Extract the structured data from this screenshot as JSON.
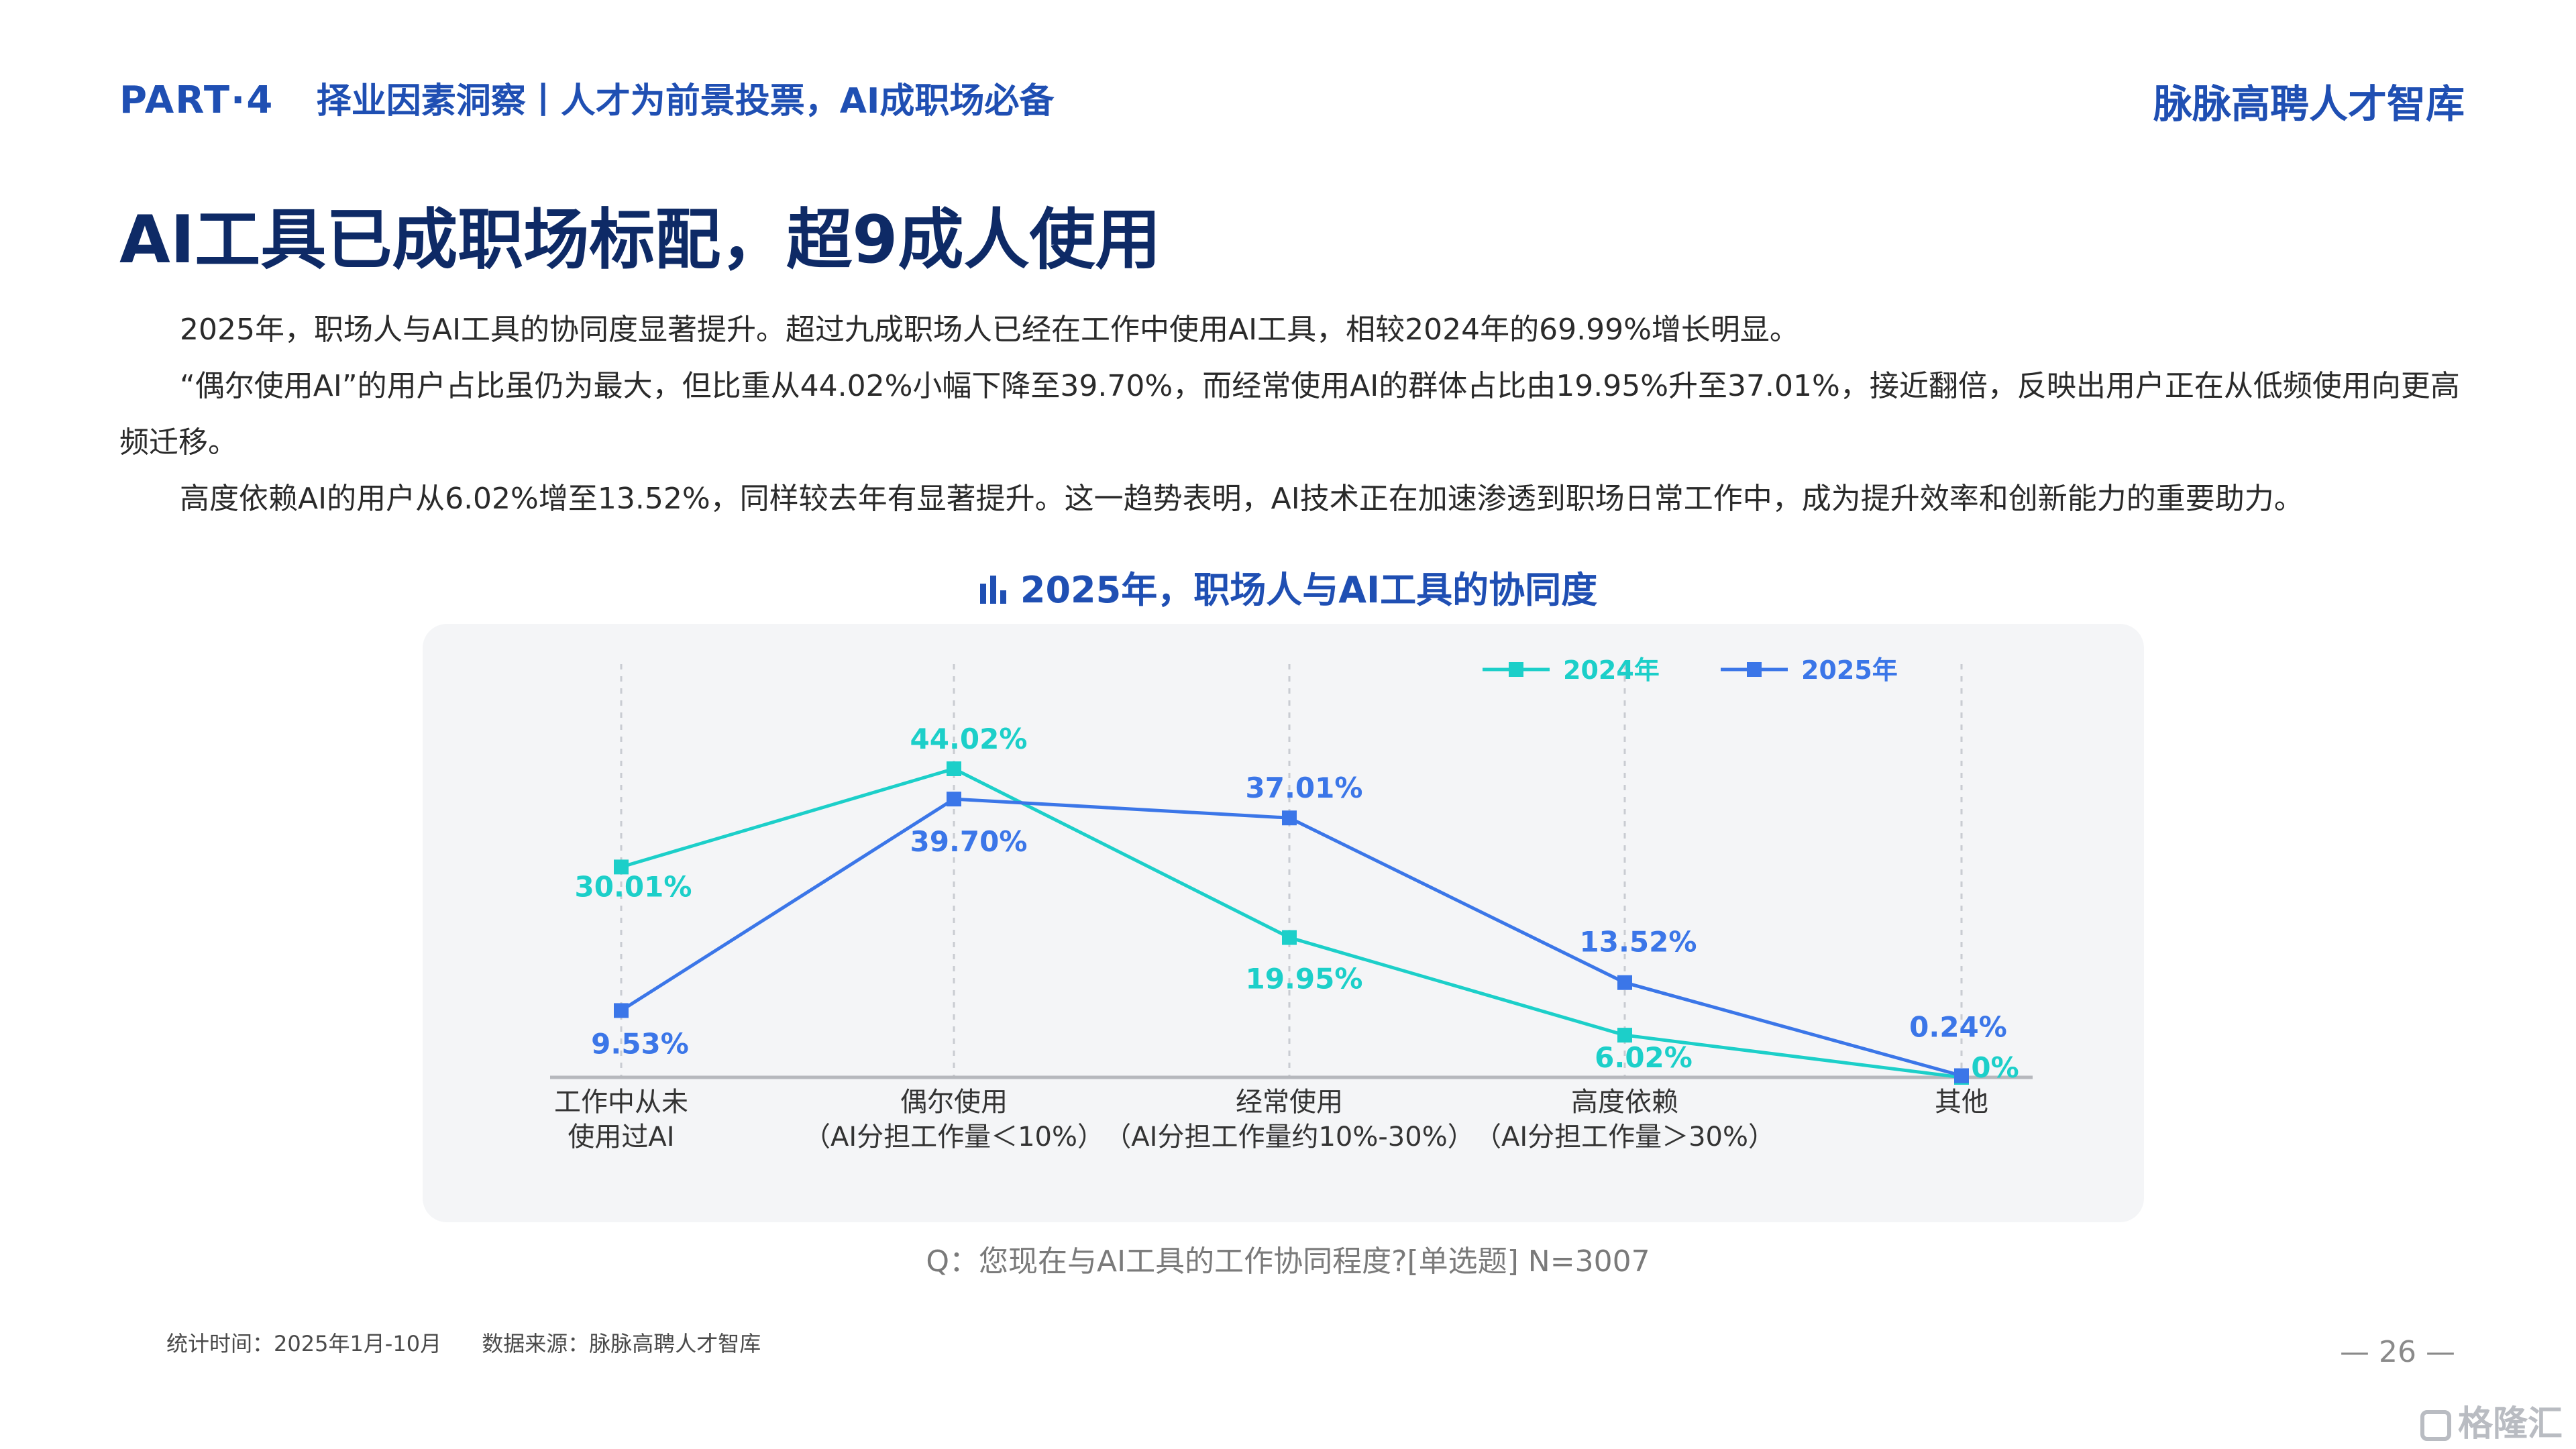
{
  "header": {
    "part": "PART·4",
    "subtitle": "择业因素洞察丨人才为前景投票，AI成职场必备",
    "brand": "脉脉高聘人才智库"
  },
  "main_title": "AI工具已成职场标配，超9成人使用",
  "paragraphs": [
    "2025年，职场人与AI工具的协同度显著提升。超过九成职场人已经在工作中使用AI工具，相较2024年的69.99%增长明显。",
    "“偶尔使用AI”的用户占比虽仍为最大，但比重从44.02%小幅下降至39.70%，而经常使用AI的群体占比由19.95%升至37.01%，接近翻倍，反映出用户正在从低频使用向更高频迁移。",
    "高度依赖AI的用户从6.02%增至13.52%，同样较去年有显著提升。这一趋势表明，AI技术正在加速渗透到职场日常工作中，成为提升效率和创新能力的重要助力。"
  ],
  "chart_heading": "2025年，职场人与AI工具的协同度",
  "chart_data": {
    "type": "line",
    "title": "2025年，职场人与AI工具的协同度",
    "categories": [
      [
        "工作中从未",
        "使用过AI"
      ],
      [
        "偶尔使用",
        "（AI分担工作量＜10%）"
      ],
      [
        "经常使用",
        "（AI分担工作量约10%-30%）"
      ],
      [
        "高度依赖",
        "（AI分担工作量＞30%）"
      ],
      [
        "其他"
      ]
    ],
    "series": [
      {
        "name": "2024年",
        "color": "#1ccfc9",
        "values": [
          30.01,
          44.02,
          19.95,
          6.02,
          0
        ],
        "labels": [
          "30.01%",
          "44.02%",
          "19.95%",
          "6.02%",
          "0%"
        ]
      },
      {
        "name": "2025年",
        "color": "#3b76e8",
        "values": [
          9.53,
          39.7,
          37.01,
          13.52,
          0.24
        ],
        "labels": [
          "9.53%",
          "39.70%",
          "37.01%",
          "13.52%",
          "0.24%"
        ]
      }
    ],
    "ylim": [
      0,
      50
    ],
    "legend_position": "top-right",
    "grid": "vertical-dashed"
  },
  "question": "Q：您现在与AI工具的工作协同程度?[单选题]  N=3007",
  "footer": {
    "stat_time": "统计时间：2025年1月-10月",
    "source": "数据来源：脉脉高聘人才智库"
  },
  "page_number": "— 26 —",
  "watermark": "格隆汇"
}
